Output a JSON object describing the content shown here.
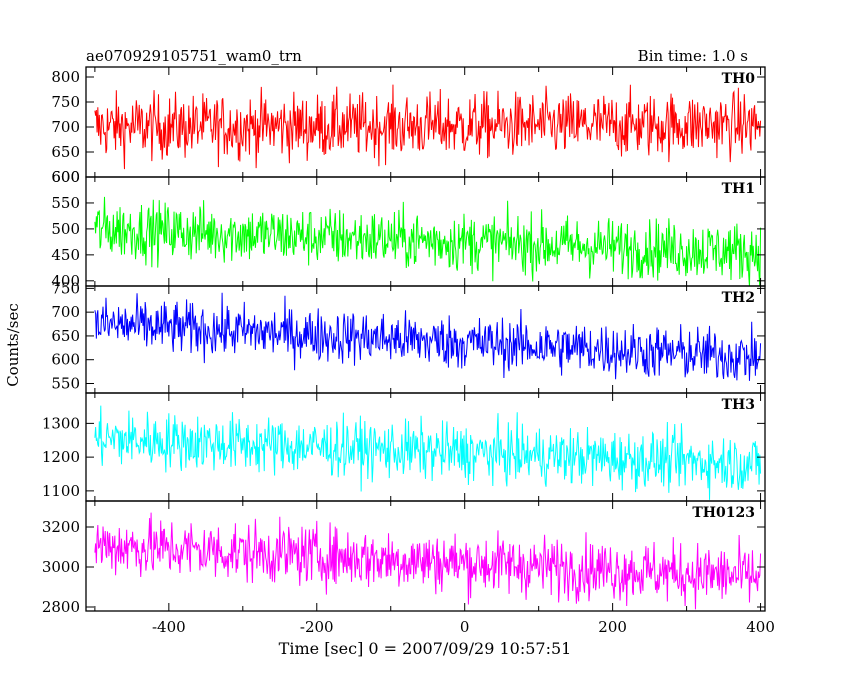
{
  "header": {
    "title": "ae070929105751_wam0_trn",
    "bin_time": "Bin time: 1.0 s"
  },
  "axes": {
    "ylabel": "Counts/sec",
    "xlabel": "Time [sec] 0 = 2007/09/29 10:57:51"
  },
  "chart_data": [
    {
      "type": "line",
      "series_name": "TH0",
      "color": "#ff0000",
      "xlim": [
        -512,
        406
      ],
      "ylim": [
        600,
        820
      ],
      "yticks": [
        600,
        650,
        700,
        750,
        800
      ],
      "x_range": [
        -500,
        400
      ],
      "mean_start": 700,
      "mean_end": 705,
      "noise": 32,
      "grid": false
    },
    {
      "type": "line",
      "series_name": "TH1",
      "color": "#00ff00",
      "xlim": [
        -512,
        406
      ],
      "ylim": [
        390,
        600
      ],
      "yticks": [
        400,
        450,
        500,
        550,
        600
      ],
      "x_range": [
        -500,
        400
      ],
      "mean_start": 500,
      "mean_end": 455,
      "noise": 28,
      "grid": false
    },
    {
      "type": "line",
      "series_name": "TH2",
      "color": "#0000ff",
      "xlim": [
        -512,
        406
      ],
      "ylim": [
        530,
        755
      ],
      "yticks": [
        550,
        600,
        650,
        700,
        750
      ],
      "x_range": [
        -500,
        400
      ],
      "mean_start": 675,
      "mean_end": 605,
      "noise": 28,
      "grid": false
    },
    {
      "type": "line",
      "series_name": "TH3",
      "color": "#00ffff",
      "xlim": [
        -512,
        406
      ],
      "ylim": [
        1070,
        1390
      ],
      "yticks": [
        1100,
        1200,
        1300
      ],
      "x_range": [
        -500,
        400
      ],
      "mean_start": 1255,
      "mean_end": 1180,
      "noise": 42,
      "grid": false
    },
    {
      "type": "line",
      "series_name": "TH0123",
      "color": "#ff00ff",
      "xlim": [
        -512,
        406
      ],
      "ylim": [
        2780,
        3330
      ],
      "yticks": [
        2800,
        3000,
        3200
      ],
      "xticks": [
        -400,
        -200,
        0,
        200,
        400
      ],
      "x_range": [
        -500,
        400
      ],
      "mean_start": 3110,
      "mean_end": 2950,
      "noise": 75,
      "grid": false
    }
  ]
}
